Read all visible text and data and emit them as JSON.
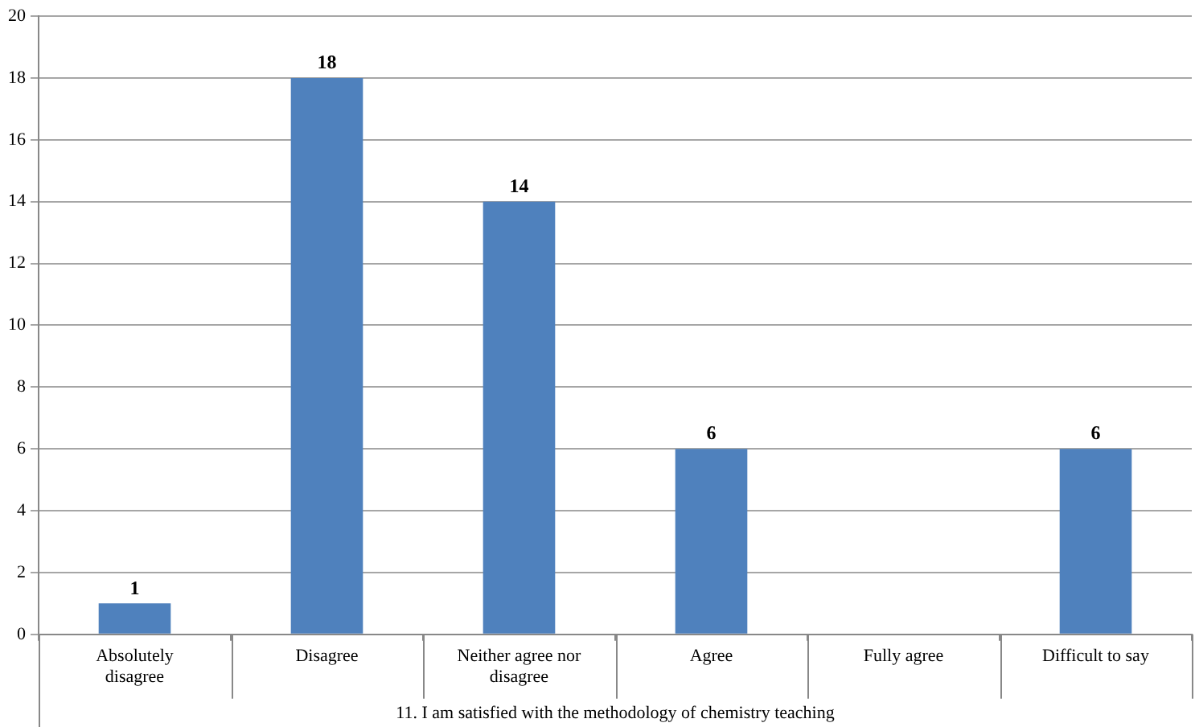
{
  "chart_data": {
    "type": "bar",
    "xlabel": "11. I am satisfied with the methodology of chemistry teaching",
    "categories": [
      "Absolutely disagree",
      "Disagree",
      "Neither agree nor disagree",
      "Agree",
      "Fully agree",
      "Difficult to say"
    ],
    "values": [
      1,
      18,
      14,
      6,
      0,
      6
    ],
    "value_labels": [
      "1",
      "18",
      "14",
      "6",
      null,
      "6"
    ],
    "color": "#4f81bd",
    "ylim": [
      0,
      20
    ],
    "yticks": [
      0,
      2,
      4,
      6,
      8,
      10,
      12,
      14,
      16,
      18,
      20
    ],
    "grid": "y"
  }
}
